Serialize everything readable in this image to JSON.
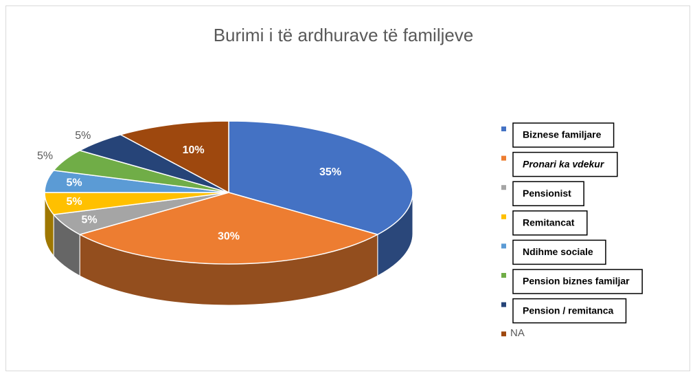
{
  "chart_data": {
    "type": "pie",
    "title": "Burimi i të ardhurave të familjeve",
    "categories": [
      "Biznese familjare",
      "Pronari ka vdekur",
      "Pensionist",
      "Remitancat",
      "Ndihme sociale",
      "Pension biznes familjar",
      "Pension / remitanca",
      "NA"
    ],
    "values": [
      35,
      30,
      5,
      5,
      5,
      5,
      5,
      10
    ],
    "value_labels": [
      "35%",
      "30%",
      "5%",
      "5%",
      "5%",
      "5%",
      "5%",
      "10%"
    ],
    "colors": [
      "#4472c4",
      "#ed7d31",
      "#a5a5a5",
      "#ffc000",
      "#5b9bd5",
      "#70ad47",
      "#264478",
      "#9e480e"
    ],
    "legend": "right"
  }
}
